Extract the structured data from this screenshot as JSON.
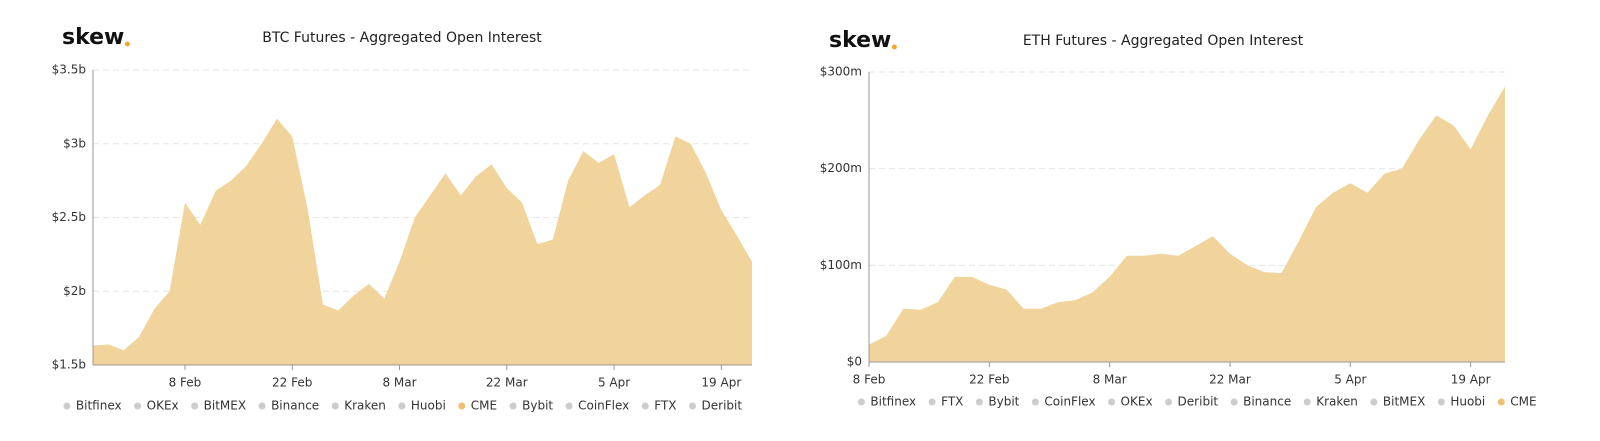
{
  "chart_data": [
    {
      "type": "area",
      "logo": "skew",
      "title": "BTC Futures - Aggregated Open Interest",
      "categories": [
        null,
        null,
        null,
        null,
        null,
        null,
        "8 Feb",
        null,
        null,
        null,
        null,
        null,
        null,
        "22 Feb",
        null,
        null,
        null,
        null,
        null,
        null,
        "8 Mar",
        null,
        null,
        null,
        null,
        null,
        null,
        "22 Mar",
        null,
        null,
        null,
        null,
        null,
        null,
        "5 Apr",
        null,
        null,
        null,
        null,
        null,
        null,
        "19 Apr",
        null,
        null
      ],
      "ylim": [
        1.5,
        3.5
      ],
      "yticks": [
        {
          "value": 1.5,
          "label": "$1.5b"
        },
        {
          "value": 2,
          "label": "$2b"
        },
        {
          "value": 2.5,
          "label": "$2.5b"
        },
        {
          "value": 3,
          "label": "$3b"
        },
        {
          "value": 3.5,
          "label": "$3.5b"
        }
      ],
      "grid": true,
      "series": [
        {
          "name": "Bitfinex",
          "visible": false
        },
        {
          "name": "OKEx",
          "visible": false
        },
        {
          "name": "BitMEX",
          "visible": false
        },
        {
          "name": "Binance",
          "visible": false
        },
        {
          "name": "Kraken",
          "visible": false
        },
        {
          "name": "Huobi",
          "visible": false
        },
        {
          "name": "CME",
          "visible": true,
          "color": "#f0d49c",
          "values": [
            1.63,
            1.64,
            1.6,
            1.69,
            1.88,
            2.0,
            2.6,
            2.45,
            2.68,
            2.75,
            2.85,
            3.0,
            3.17,
            3.05,
            2.56,
            1.91,
            1.87,
            1.97,
            2.05,
            1.95,
            2.2,
            2.5,
            2.65,
            2.8,
            2.65,
            2.78,
            2.86,
            2.7,
            2.6,
            2.32,
            2.35,
            2.75,
            2.95,
            2.87,
            2.93,
            2.57,
            2.65,
            2.72,
            3.05,
            3.0,
            2.8,
            2.55,
            2.38,
            2.2
          ]
        },
        {
          "name": "Bybit",
          "visible": false
        },
        {
          "name": "CoinFlex",
          "visible": false
        },
        {
          "name": "FTX",
          "visible": false
        },
        {
          "name": "Deribit",
          "visible": false
        }
      ]
    },
    {
      "type": "area",
      "logo": "skew",
      "title": "ETH Futures - Aggregated Open Interest",
      "categories": [
        "8 Feb",
        null,
        null,
        null,
        null,
        null,
        null,
        "22 Feb",
        null,
        null,
        null,
        null,
        null,
        null,
        "8 Mar",
        null,
        null,
        null,
        null,
        null,
        null,
        "22 Mar",
        null,
        null,
        null,
        null,
        null,
        null,
        "5 Apr",
        null,
        null,
        null,
        null,
        null,
        null,
        "19 Apr",
        null,
        null
      ],
      "ylim": [
        0,
        300
      ],
      "yticks": [
        {
          "value": 0,
          "label": "$0"
        },
        {
          "value": 100,
          "label": "$100m"
        },
        {
          "value": 200,
          "label": "$200m"
        },
        {
          "value": 300,
          "label": "$300m"
        }
      ],
      "grid": true,
      "series": [
        {
          "name": "Bitfinex",
          "visible": false
        },
        {
          "name": "FTX",
          "visible": false
        },
        {
          "name": "Bybit",
          "visible": false
        },
        {
          "name": "CoinFlex",
          "visible": false
        },
        {
          "name": "OKEx",
          "visible": false
        },
        {
          "name": "Deribit",
          "visible": false
        },
        {
          "name": "Binance",
          "visible": false
        },
        {
          "name": "Kraken",
          "visible": false
        },
        {
          "name": "BitMEX",
          "visible": false
        },
        {
          "name": "Huobi",
          "visible": false
        },
        {
          "name": "CME",
          "visible": true,
          "color": "#f0d49c",
          "values": [
            18,
            27,
            55,
            54,
            62,
            88,
            88,
            80,
            75,
            55,
            55,
            62,
            64,
            72,
            88,
            110,
            110,
            112,
            110,
            120,
            130,
            112,
            100,
            93,
            92,
            125,
            160,
            175,
            185,
            175,
            195,
            200,
            230,
            255,
            245,
            220,
            255,
            285
          ]
        }
      ]
    }
  ]
}
